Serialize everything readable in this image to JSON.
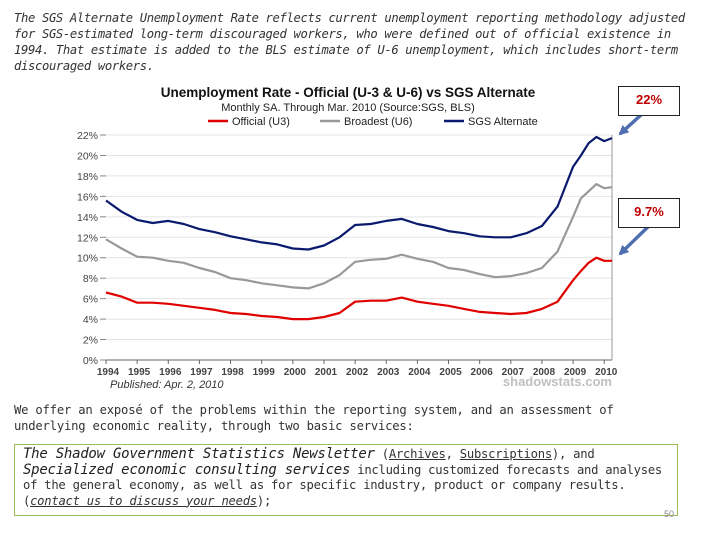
{
  "intro_text": "The SGS Alternate Unemployment Rate reflects current unemployment reporting methodology adjusted for SGS-estimated long-term discouraged workers, who were defined out of official existence in 1994. That estimate is added to the BLS estimate of U-6 unemployment, which includes short-term discouraged workers.",
  "chart_data": {
    "type": "line",
    "title": "Unemployment Rate - Official (U-3 & U-6) vs SGS Alternate",
    "subtitle": "Monthly SA. Through Mar. 2010  (Source:SGS, BLS)",
    "categories": [
      "1994",
      "1995",
      "1996",
      "1997",
      "1998",
      "1999",
      "2000",
      "2001",
      "2002",
      "2003",
      "2004",
      "2005",
      "2006",
      "2007",
      "2008",
      "2009",
      "2010"
    ],
    "x_range": [
      1994,
      2010.25
    ],
    "ylim": [
      0,
      22
    ],
    "yticks": [
      0,
      2,
      4,
      6,
      8,
      10,
      12,
      14,
      16,
      18,
      20,
      22
    ],
    "ytick_labels": [
      "0%",
      "2%",
      "4%",
      "6%",
      "8%",
      "10%",
      "12%",
      "14%",
      "16%",
      "18%",
      "20%",
      "22%"
    ],
    "series": [
      {
        "name": "Official (U3)",
        "color": "#e00000",
        "x": [
          1994,
          1994.5,
          1995,
          1995.5,
          1996,
          1996.5,
          1997,
          1997.5,
          1998,
          1998.5,
          1999,
          1999.5,
          2000,
          2000.5,
          2001,
          2001.5,
          2002,
          2002.5,
          2003,
          2003.5,
          2004,
          2004.5,
          2005,
          2005.5,
          2006,
          2006.5,
          2007,
          2007.5,
          2008,
          2008.5,
          2009,
          2009.25,
          2009.5,
          2009.75,
          2010,
          2010.25
        ],
        "y": [
          6.6,
          6.2,
          5.6,
          5.6,
          5.5,
          5.3,
          5.1,
          4.9,
          4.6,
          4.5,
          4.3,
          4.2,
          4.0,
          4.0,
          4.2,
          4.6,
          5.7,
          5.8,
          5.8,
          6.1,
          5.7,
          5.5,
          5.3,
          5.0,
          4.7,
          4.6,
          4.5,
          4.6,
          5.0,
          5.7,
          7.8,
          8.7,
          9.5,
          10.0,
          9.7,
          9.7
        ]
      },
      {
        "name": "Broadest (U6)",
        "color": "#999999",
        "x": [
          1994,
          1994.5,
          1995,
          1995.5,
          1996,
          1996.5,
          1997,
          1997.5,
          1998,
          1998.5,
          1999,
          1999.5,
          2000,
          2000.5,
          2001,
          2001.5,
          2002,
          2002.5,
          2003,
          2003.5,
          2004,
          2004.5,
          2005,
          2005.5,
          2006,
          2006.5,
          2007,
          2007.5,
          2008,
          2008.5,
          2009,
          2009.25,
          2009.5,
          2009.75,
          2010,
          2010.25
        ],
        "y": [
          11.8,
          10.9,
          10.1,
          10.0,
          9.7,
          9.5,
          9.0,
          8.6,
          8.0,
          7.8,
          7.5,
          7.3,
          7.1,
          7.0,
          7.5,
          8.3,
          9.6,
          9.8,
          9.9,
          10.3,
          9.9,
          9.6,
          9.0,
          8.8,
          8.4,
          8.1,
          8.2,
          8.5,
          9.0,
          10.6,
          14.0,
          15.8,
          16.5,
          17.2,
          16.8,
          16.9
        ]
      },
      {
        "name": "SGS Alternate",
        "color": "#0a1a6e",
        "x": [
          1994,
          1994.5,
          1995,
          1995.5,
          1996,
          1996.5,
          1997,
          1997.5,
          1998,
          1998.5,
          1999,
          1999.5,
          2000,
          2000.5,
          2001,
          2001.5,
          2002,
          2002.5,
          2003,
          2003.5,
          2004,
          2004.5,
          2005,
          2005.5,
          2006,
          2006.5,
          2007,
          2007.5,
          2008,
          2008.5,
          2009,
          2009.25,
          2009.5,
          2009.75,
          2010,
          2010.25
        ],
        "y": [
          15.6,
          14.5,
          13.7,
          13.4,
          13.6,
          13.3,
          12.8,
          12.5,
          12.1,
          11.8,
          11.5,
          11.3,
          10.9,
          10.8,
          11.2,
          12.0,
          13.2,
          13.3,
          13.6,
          13.8,
          13.3,
          13.0,
          12.6,
          12.4,
          12.1,
          12.0,
          12.0,
          12.4,
          13.1,
          15.0,
          18.9,
          20.0,
          21.2,
          21.8,
          21.4,
          21.7
        ]
      }
    ]
  },
  "chart_text": {
    "published": "Published: Apr. 2, 2010",
    "watermark": "shadowstats.com"
  },
  "callouts": {
    "top": "22%",
    "middle": "9.7%"
  },
  "body_text": "We offer an exposé of the problems within the reporting system, and an assessment of underlying economic reality, through two basic services:",
  "newsletter": {
    "name": "The Shadow Government Statistics Newsletter",
    "paren_open": " (",
    "archives": "Archives",
    "comma": ", ",
    "subscriptions": "Subscriptions",
    "paren_close": "), and",
    "consulting": "Specialized economic consulting services",
    "rest": " including customized forecasts and analyses of the general economy, as well as for specific industry, product or company results. (",
    "contact": "contact us to discuss your needs",
    "end": ");"
  },
  "page_number": "50",
  "colors": {
    "accent_red": "#c00000",
    "box_border": "#9bbb59",
    "arrow_blue": "#4f6fb0"
  }
}
